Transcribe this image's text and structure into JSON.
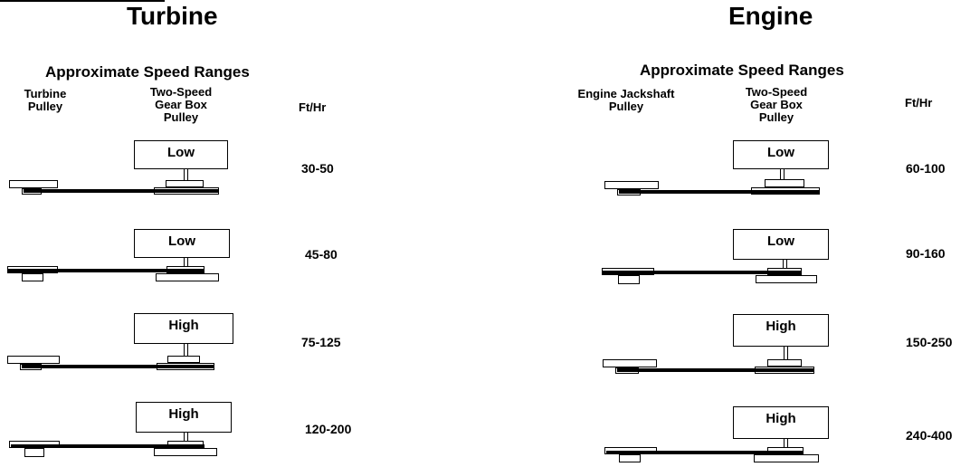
{
  "panels": [
    {
      "title": "Turbine",
      "subtitle": "Approximate Speed Ranges",
      "headers": {
        "drive_pulley": [
          "Turbine",
          "Pulley"
        ],
        "gearbox_pulley": [
          "Two-Speed",
          "Gear Box",
          "Pulley"
        ],
        "speed": "Ft/Hr"
      },
      "configurations": [
        {
          "gear": "Low",
          "speed_range": "30-50"
        },
        {
          "gear": "Low",
          "speed_range": "45-80"
        },
        {
          "gear": "High",
          "speed_range": "75-125"
        },
        {
          "gear": "High",
          "speed_range": "120-200"
        }
      ]
    },
    {
      "title": "Engine",
      "subtitle": "Approximate Speed Ranges",
      "headers": {
        "drive_pulley": [
          "Engine Jackshaft",
          "Pulley"
        ],
        "gearbox_pulley": [
          "Two-Speed",
          "Gear Box",
          "Pulley"
        ],
        "speed": "Ft/Hr"
      },
      "configurations": [
        {
          "gear": "Low",
          "speed_range": "60-100"
        },
        {
          "gear": "Low",
          "speed_range": "90-160"
        },
        {
          "gear": "High",
          "speed_range": "150-250"
        },
        {
          "gear": "High",
          "speed_range": "240-400"
        }
      ]
    }
  ]
}
